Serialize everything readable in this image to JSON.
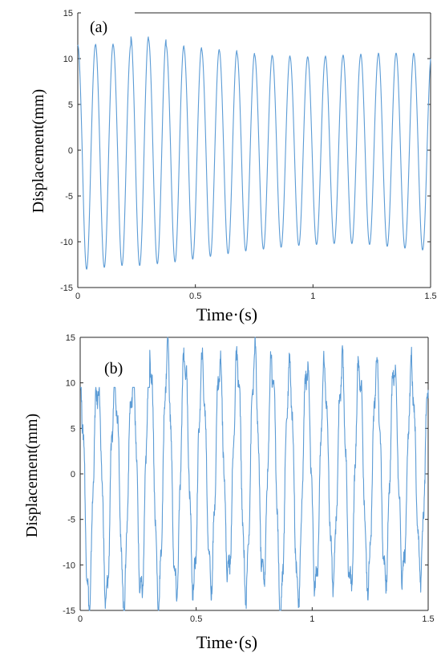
{
  "chart_data": [
    {
      "type": "line",
      "panel_label": "(a)",
      "xlabel": "Time·(s)",
      "ylabel": "Displacement(mm)",
      "xlim": [
        0,
        1.5
      ],
      "ylim": [
        -15,
        15
      ],
      "xticks": [
        "0",
        "0.5",
        "1",
        "1.5"
      ],
      "yticks": [
        "15",
        "10",
        "5",
        "0",
        "-5",
        "-10",
        "-15"
      ],
      "series_color": "#5b9bd5",
      "series": [
        {
          "frequency_hz": 13.3,
          "peaks": [
            11.5,
            11.6,
            11.5,
            12.4,
            12.1,
            11.4,
            11.2,
            11.0,
            10.9,
            10.6,
            10.4,
            10.3,
            10.2,
            10.2,
            10.3,
            10.4,
            10.5,
            10.6,
            10.6,
            10.5
          ],
          "troughs": [
            -13.0,
            -12.8,
            -12.6,
            -12.6,
            -12.4,
            -12.2,
            -11.9,
            -11.6,
            -11.3,
            -11.0,
            -10.8,
            -10.6,
            -10.4,
            -10.3,
            -10.2,
            -10.2,
            -10.3,
            -10.5,
            -10.7,
            -10.9
          ]
        }
      ]
    },
    {
      "type": "line",
      "panel_label": "(b)",
      "xlabel": "Time·(s)",
      "ylabel": "Displacement(mm)",
      "xlim": [
        0,
        1.5
      ],
      "ylim": [
        -15,
        15
      ],
      "xticks": [
        "0",
        "0.5",
        "1",
        "1.5"
      ],
      "yticks": [
        "15",
        "10",
        "5",
        "0",
        "-5",
        "-10",
        "-15"
      ],
      "series_color": "#5b9bd5",
      "series": [
        {
          "frequency_hz": 13.3,
          "peaks": [
            9.5,
            9.5,
            9.5,
            12.8,
            13.0,
            13.8,
            12.0,
            11.8,
            12.2,
            12.6,
            13.2,
            11.5,
            11.8,
            11.6,
            11.2,
            12.2,
            11.8,
            11.8,
            11.7,
            11.0
          ],
          "troughs": [
            -14.5,
            -14.0,
            -14.2,
            -13.5,
            -13.8,
            -13.0,
            -12.5,
            -12.0,
            -11.0,
            -12.8,
            -11.5,
            -14.8,
            -13.5,
            -12.5,
            -11.5,
            -12.5,
            -12.0,
            -11.5,
            -11.0,
            -10.8
          ]
        }
      ]
    }
  ]
}
